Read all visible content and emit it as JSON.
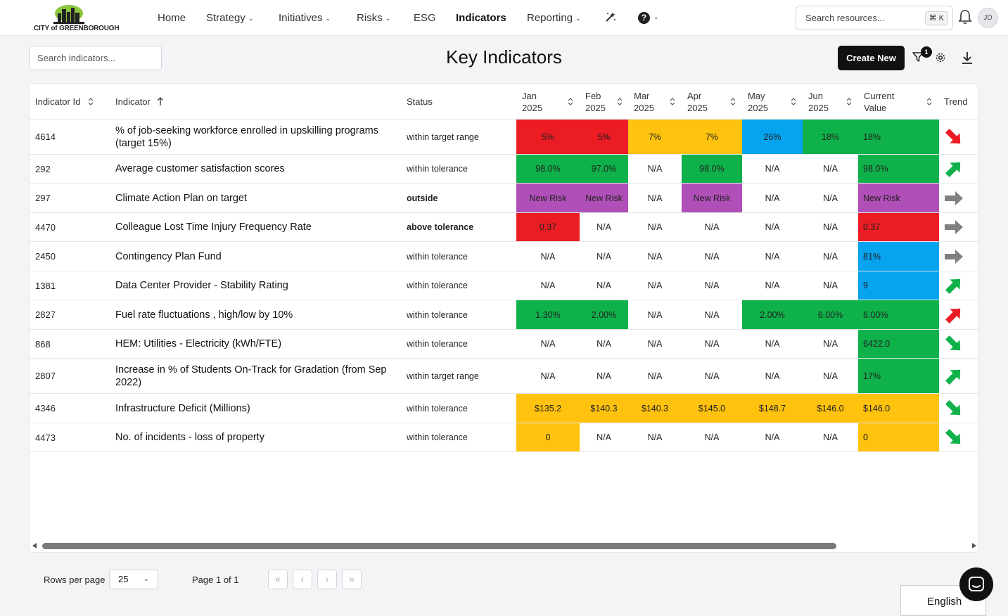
{
  "brand": {
    "logo_text": "CITY of GREENBOROUGH"
  },
  "nav": {
    "items": [
      {
        "label": "Home",
        "dropdown": false
      },
      {
        "label": "Strategy",
        "dropdown": true
      },
      {
        "label": "Initiatives",
        "dropdown": true
      },
      {
        "label": "Risks",
        "dropdown": true
      },
      {
        "label": "ESG",
        "dropdown": false
      },
      {
        "label": "Indicators",
        "dropdown": false,
        "active": true
      },
      {
        "label": "Reporting",
        "dropdown": true
      }
    ],
    "help_label": "?",
    "search_placeholder": "Search resources...",
    "shortcut": "⌘ K",
    "avatar_initials": "JD"
  },
  "toolbar": {
    "search_placeholder": "Search indicators...",
    "title": "Key Indicators",
    "create_label": "Create New",
    "filter_count": "1"
  },
  "table": {
    "columns": {
      "id": "Indicator Id",
      "name": "Indicator",
      "status": "Status",
      "jan": [
        "Jan",
        "2025"
      ],
      "feb": [
        "Feb",
        "2025"
      ],
      "mar": [
        "Mar",
        "2025"
      ],
      "apr": [
        "Apr",
        "2025"
      ],
      "may": [
        "May",
        "2025"
      ],
      "jun": [
        "Jun",
        "2025"
      ],
      "current": [
        "Current",
        "Value"
      ],
      "trend": "Trend"
    },
    "rows": [
      {
        "id": "4614",
        "name": "% of job-seeking workforce enrolled in upskilling programs (target 15%)",
        "status": "within target range",
        "status_bold": false,
        "months": [
          {
            "v": "5%",
            "c": "red"
          },
          {
            "v": "5%",
            "c": "red"
          },
          {
            "v": "7%",
            "c": "amber"
          },
          {
            "v": "7%",
            "c": "amber"
          },
          {
            "v": "26%",
            "c": "blue"
          },
          {
            "v": "18%",
            "c": "green"
          }
        ],
        "current": {
          "v": "18%",
          "c": "green"
        },
        "trend": "down-red"
      },
      {
        "id": "292",
        "name": "Average customer satisfaction scores",
        "status": "within tolerance",
        "status_bold": false,
        "months": [
          {
            "v": "98.0%",
            "c": "green"
          },
          {
            "v": "97.0%",
            "c": "green"
          },
          {
            "v": "N/A",
            "c": ""
          },
          {
            "v": "98.0%",
            "c": "green"
          },
          {
            "v": "N/A",
            "c": ""
          },
          {
            "v": "N/A",
            "c": ""
          }
        ],
        "current": {
          "v": "98.0%",
          "c": "green"
        },
        "trend": "up-green"
      },
      {
        "id": "297",
        "name": "Climate Action Plan on target",
        "status": "outside",
        "status_bold": true,
        "months": [
          {
            "v": "New Risk",
            "c": "purple"
          },
          {
            "v": "New Risk",
            "c": "purple"
          },
          {
            "v": "N/A",
            "c": ""
          },
          {
            "v": "New Risk",
            "c": "purple"
          },
          {
            "v": "N/A",
            "c": ""
          },
          {
            "v": "N/A",
            "c": ""
          }
        ],
        "current": {
          "v": "New Risk",
          "c": "purple"
        },
        "trend": "flat-grey"
      },
      {
        "id": "4470",
        "name": "Colleague Lost Time Injury Frequency Rate",
        "status": "above tolerance",
        "status_bold": true,
        "months": [
          {
            "v": "0.37",
            "c": "red"
          },
          {
            "v": "N/A",
            "c": ""
          },
          {
            "v": "N/A",
            "c": ""
          },
          {
            "v": "N/A",
            "c": ""
          },
          {
            "v": "N/A",
            "c": ""
          },
          {
            "v": "N/A",
            "c": ""
          }
        ],
        "current": {
          "v": "0.37",
          "c": "red"
        },
        "trend": "flat-grey"
      },
      {
        "id": "2450",
        "name": "Contingency Plan Fund",
        "status": "within tolerance",
        "status_bold": false,
        "months": [
          {
            "v": "N/A",
            "c": ""
          },
          {
            "v": "N/A",
            "c": ""
          },
          {
            "v": "N/A",
            "c": ""
          },
          {
            "v": "N/A",
            "c": ""
          },
          {
            "v": "N/A",
            "c": ""
          },
          {
            "v": "N/A",
            "c": ""
          }
        ],
        "current": {
          "v": "81%",
          "c": "blue"
        },
        "trend": "flat-grey"
      },
      {
        "id": "1381",
        "name": "Data Center Provider - Stability Rating",
        "status": "within tolerance",
        "status_bold": false,
        "months": [
          {
            "v": "N/A",
            "c": ""
          },
          {
            "v": "N/A",
            "c": ""
          },
          {
            "v": "N/A",
            "c": ""
          },
          {
            "v": "N/A",
            "c": ""
          },
          {
            "v": "N/A",
            "c": ""
          },
          {
            "v": "N/A",
            "c": ""
          }
        ],
        "current": {
          "v": "9",
          "c": "blue"
        },
        "trend": "up-green"
      },
      {
        "id": "2827",
        "name": "Fuel rate fluctuations , high/low by 10%",
        "status": "within tolerance",
        "status_bold": false,
        "months": [
          {
            "v": "1.30%",
            "c": "green"
          },
          {
            "v": "2.00%",
            "c": "green"
          },
          {
            "v": "N/A",
            "c": ""
          },
          {
            "v": "N/A",
            "c": ""
          },
          {
            "v": "2.00%",
            "c": "green"
          },
          {
            "v": "6.00%",
            "c": "green"
          }
        ],
        "current": {
          "v": "6.00%",
          "c": "green"
        },
        "trend": "up-red"
      },
      {
        "id": "868",
        "name": "HEM: Utilities - Electricity (kWh/FTE)",
        "status": "within tolerance",
        "status_bold": false,
        "months": [
          {
            "v": "N/A",
            "c": ""
          },
          {
            "v": "N/A",
            "c": ""
          },
          {
            "v": "N/A",
            "c": ""
          },
          {
            "v": "N/A",
            "c": ""
          },
          {
            "v": "N/A",
            "c": ""
          },
          {
            "v": "N/A",
            "c": ""
          }
        ],
        "current": {
          "v": "6422.0",
          "c": "green"
        },
        "trend": "down-green"
      },
      {
        "id": "2807",
        "name": "Increase in % of Students On-Track for Gradation (from Sep 2022)",
        "status": "within target range",
        "status_bold": false,
        "months": [
          {
            "v": "N/A",
            "c": ""
          },
          {
            "v": "N/A",
            "c": ""
          },
          {
            "v": "N/A",
            "c": ""
          },
          {
            "v": "N/A",
            "c": ""
          },
          {
            "v": "N/A",
            "c": ""
          },
          {
            "v": "N/A",
            "c": ""
          }
        ],
        "current": {
          "v": "17%",
          "c": "green"
        },
        "trend": "up-green"
      },
      {
        "id": "4346",
        "name": "Infrastructure Deficit (Millions)",
        "status": "within tolerance",
        "status_bold": false,
        "months": [
          {
            "v": "$135.2",
            "c": "amber"
          },
          {
            "v": "$140.3",
            "c": "amber"
          },
          {
            "v": "$140.3",
            "c": "amber"
          },
          {
            "v": "$145.0",
            "c": "amber"
          },
          {
            "v": "$148.7",
            "c": "amber"
          },
          {
            "v": "$146.0",
            "c": "amber"
          }
        ],
        "current": {
          "v": "$146.0",
          "c": "amber"
        },
        "trend": "down-green"
      },
      {
        "id": "4473",
        "name": "No. of incidents - loss of property",
        "status": "within tolerance",
        "status_bold": false,
        "months": [
          {
            "v": "0",
            "c": "amber"
          },
          {
            "v": "N/A",
            "c": ""
          },
          {
            "v": "N/A",
            "c": ""
          },
          {
            "v": "N/A",
            "c": ""
          },
          {
            "v": "N/A",
            "c": ""
          },
          {
            "v": "N/A",
            "c": ""
          }
        ],
        "current": {
          "v": "0",
          "c": "amber"
        },
        "trend": "down-green"
      }
    ]
  },
  "colors": {
    "red": "#ec1c24",
    "amber": "#ffc20e",
    "green": "#0fb14a",
    "blue": "#06a3ef",
    "purple": "#b04fb8",
    "grey_arrow": "#808080"
  },
  "pagination": {
    "rows_per_page_label": "Rows per page",
    "rows_per_page": "25",
    "page_info": "Page 1 of 1",
    "first": "«",
    "prev": "‹",
    "next": "›",
    "last": "»"
  },
  "language": "English"
}
